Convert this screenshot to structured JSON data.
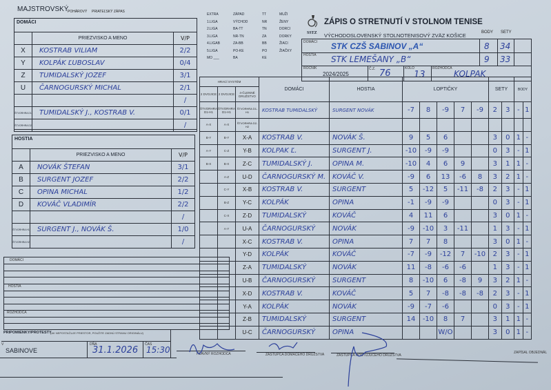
{
  "header": {
    "competition_types": [
      "MAJSTROVSKÝ",
      "POHÁROVÝ",
      "PRIATEĽSKÝ ZÁPAS"
    ],
    "league_col1": [
      "EXTRA",
      "1.LIGA",
      "2.LIGA",
      "3.LIGA",
      "4.LIGAB",
      "5.LIGA",
      "MO ___"
    ],
    "league_col2": [
      "ZÁPAD",
      "VÝCHOD",
      "BA-TT",
      "NR-TN",
      "ZA-BB",
      "PO-KE",
      "BA"
    ],
    "league_col3": [
      "TT",
      "NR",
      "TN",
      "ZA",
      "BB",
      "PO",
      "KE"
    ],
    "league_col4": [
      "MUŽI",
      "ŽENY",
      "DORCI",
      "DORKY",
      "ŽIACI",
      "ŽIAČKY"
    ],
    "logo_text": "SSTZ",
    "title": "ZÁPIS O STRETNUTÍ V STOLNOM TENISE",
    "subtitle": "VÝCHODOSLOVENSKÝ STOLNOTENISOVÝ ZVÄZ KOŠICE",
    "body_label": "BODY",
    "sety_label": "SETY"
  },
  "teams": {
    "home_label": "DOMÁCI",
    "home": "STK CZŠ SABINOV „A“",
    "home_points": "8",
    "home_sets": "34",
    "away_label": "HOSTIA",
    "away": "STK LEMEŠANY „B“",
    "away_points": "9",
    "away_sets": "33",
    "season_label": "ROČNÍK",
    "season": "2024/2025",
    "number_label": "Č.Z.",
    "number": "76",
    "round_label": "KOLO",
    "round": "13",
    "referee_label": "ROZHODCA",
    "referee": "KOLPAK"
  },
  "home_players": {
    "title": "DOMÁCI",
    "name_header": "PRIEZVISKO A MENO",
    "vp_header": "V/P",
    "rows": [
      {
        "l": "X",
        "n": "KOSTRAB VILIAM",
        "vp": "2/2"
      },
      {
        "l": "Y",
        "n": "KOLPÁK ĽUBOSLAV",
        "vp": "0/4"
      },
      {
        "l": "Z",
        "n": "TUMIDALSKÝ JOZEF",
        "vp": "3/1"
      },
      {
        "l": "U",
        "n": "ČARNOGURSKÝ MICHAL",
        "vp": "2/1"
      },
      {
        "l": "",
        "n": "",
        "vp": "/"
      },
      {
        "l": "ŠTVORHRA D1",
        "n": "TUMIDALSKÝ J., KOSTRAB V.",
        "vp": "0/1"
      },
      {
        "l": "ŠTVORHRA D2",
        "n": "",
        "vp": "/"
      }
    ]
  },
  "away_players": {
    "title": "HOSTIA",
    "name_header": "PRIEZVISKO A MENO",
    "vp_header": "V/P",
    "rows": [
      {
        "l": "A",
        "n": "NOVÁK ŠTEFAN",
        "vp": "3/1"
      },
      {
        "l": "B",
        "n": "SURGENT JOZEF",
        "vp": "2/2"
      },
      {
        "l": "C",
        "n": "OPINA MICHAL",
        "vp": "1/2"
      },
      {
        "l": "D",
        "n": "KOVÁČ VLADIMÍR",
        "vp": "2/2"
      },
      {
        "l": "",
        "n": "",
        "vp": "/"
      },
      {
        "l": "ŠTVORHRA H1",
        "n": "SURGENT J., NOVÁK Š.",
        "vp": "1/0"
      },
      {
        "l": "ŠTVORHRA H2",
        "n": "",
        "vp": "/"
      }
    ]
  },
  "matches": {
    "system_label": "HRACÍ SYSTÉM",
    "sys_headers": [
      "2 DVOJICE",
      "2 DVOJICE",
      "4-ČLENNÉ DRUŽSTVO"
    ],
    "home_header": "DOMÁCI",
    "away_header": "HOSTIA",
    "balls_header": "LOPTIČKY",
    "sets_header": "SETY",
    "points_header": "BODY",
    "rows": [
      {
        "s1": "ŠTVORHRA D1-H1",
        "s2": "ŠTVORHRA D1-H1",
        "code": "ŠTVORHRA D1-H1",
        "h": "KOSTRAB TUMIDALSKÝ",
        "a": "SURGENT NOVÁK",
        "b": [
          "-7",
          "8",
          "-9",
          "7",
          "-9"
        ],
        "s": [
          "2",
          "3"
        ],
        "p": [
          "-",
          "1"
        ]
      },
      {
        "s1": "A-X",
        "s2": "A-X",
        "code": "ŠTVORHRA D2-H2",
        "h": "",
        "a": "",
        "b": [
          "",
          "",
          "",
          "",
          ""
        ],
        "s": [
          "",
          ""
        ],
        "p": [
          "",
          ""
        ]
      },
      {
        "s1": "B-Y",
        "s2": "B-Y",
        "code": "X-A",
        "h": "KOSTRAB V.",
        "a": "NOVÁK Š.",
        "b": [
          "9",
          "5",
          "6",
          "",
          ""
        ],
        "s": [
          "3",
          "0"
        ],
        "p": [
          "1",
          "-"
        ]
      },
      {
        "s1": "A-Y",
        "s2": "C-Z",
        "code": "Y-B",
        "h": "KOLPAK Ľ.",
        "a": "SURGENT J.",
        "b": [
          "-10",
          "-9",
          "-9",
          "",
          ""
        ],
        "s": [
          "0",
          "3"
        ],
        "p": [
          "-",
          "1"
        ]
      },
      {
        "s1": "B-X",
        "s2": "B-X",
        "code": "Z-C",
        "h": "TUMIDALSKÝ J.",
        "a": "OPINA M.",
        "b": [
          "-10",
          "4",
          "6",
          "9",
          ""
        ],
        "s": [
          "3",
          "1"
        ],
        "p": [
          "1",
          "-"
        ]
      },
      {
        "s1": "",
        "s2": "A-Z",
        "code": "U-D",
        "h": "ČARNOGURSKÝ M.",
        "a": "KOVÁČ V.",
        "b": [
          "-9",
          "6",
          "13",
          "-6",
          "8"
        ],
        "s": [
          "3",
          "2"
        ],
        "p": [
          "1",
          "-"
        ]
      },
      {
        "s1": "",
        "s2": "C-Y",
        "code": "X-B",
        "h": "KOSTRAB V.",
        "a": "SURGENT",
        "b": [
          "5",
          "-12",
          "5",
          "-11",
          "-8"
        ],
        "s": [
          "2",
          "3"
        ],
        "p": [
          "-",
          "1"
        ]
      },
      {
        "s1": "",
        "s2": "B-Z",
        "code": "Y-C",
        "h": "KOLPÁK",
        "a": "OPINA",
        "b": [
          "-1",
          "-9",
          "-9",
          "",
          ""
        ],
        "s": [
          "0",
          "3"
        ],
        "p": [
          "-",
          "1"
        ]
      },
      {
        "s1": "",
        "s2": "C-X",
        "code": "Z-D",
        "h": "TUMIDALSKÝ",
        "a": "KOVÁČ",
        "b": [
          "4",
          "11",
          "6",
          "",
          ""
        ],
        "s": [
          "3",
          "0"
        ],
        "p": [
          "1",
          "-"
        ]
      },
      {
        "s1": "",
        "s2": "A-Y",
        "code": "U-A",
        "h": "ČARNOGURSKÝ",
        "a": "NOVÁK",
        "b": [
          "-9",
          "-10",
          "3",
          "-11",
          ""
        ],
        "s": [
          "1",
          "3"
        ],
        "p": [
          "-",
          "1"
        ]
      },
      {
        "s1": "",
        "s2": "",
        "code": "X-C",
        "h": "KOSTRAB V.",
        "a": "OPINA",
        "b": [
          "7",
          "7",
          "8",
          "",
          ""
        ],
        "s": [
          "3",
          "0"
        ],
        "p": [
          "1",
          "-"
        ]
      },
      {
        "s1": "",
        "s2": "",
        "code": "Y-D",
        "h": "KOLPÁK",
        "a": "KOVÁČ",
        "b": [
          "-7",
          "-9",
          "-12",
          "7",
          "-10"
        ],
        "s": [
          "2",
          "3"
        ],
        "p": [
          "-",
          "1"
        ]
      },
      {
        "s1": "",
        "s2": "",
        "code": "Z-A",
        "h": "TUMIDALSKÝ",
        "a": "NOVÁK",
        "b": [
          "11",
          "-8",
          "-6",
          "-6",
          ""
        ],
        "s": [
          "1",
          "3"
        ],
        "p": [
          "-",
          "1"
        ]
      },
      {
        "s1": "",
        "s2": "",
        "code": "U-B",
        "h": "ČARNOGURSKÝ",
        "a": "SURGENT",
        "b": [
          "8",
          "-10",
          "6",
          "-8",
          "9"
        ],
        "s": [
          "3",
          "2"
        ],
        "p": [
          "1",
          "-"
        ]
      },
      {
        "s1": "",
        "s2": "",
        "code": "X-D",
        "h": "KOSTRAB V.",
        "a": "KOVÁČ",
        "b": [
          "5",
          "7",
          "-8",
          "-8",
          "-8"
        ],
        "s": [
          "2",
          "3"
        ],
        "p": [
          "-",
          "1"
        ]
      },
      {
        "s1": "",
        "s2": "",
        "code": "Y-A",
        "h": "KOLPÁK",
        "a": "NOVÁK",
        "b": [
          "-9",
          "-7",
          "-6",
          "",
          ""
        ],
        "s": [
          "0",
          "3"
        ],
        "p": [
          "-",
          "1"
        ]
      },
      {
        "s1": "",
        "s2": "",
        "code": "Z-B",
        "h": "TUMIDALSKÝ",
        "a": "SURGENT",
        "b": [
          "14",
          "-10",
          "8",
          "7",
          ""
        ],
        "s": [
          "3",
          "1"
        ],
        "p": [
          "1",
          "-"
        ]
      },
      {
        "s1": "",
        "s2": "",
        "code": "U-C",
        "h": "ČARNOGURSKÝ",
        "a": "OPINA",
        "b": [
          "",
          "",
          "W/O",
          "",
          ""
        ],
        "s": [
          "3",
          "0"
        ],
        "p": [
          "1",
          "-"
        ]
      }
    ]
  },
  "notes": {
    "home_label": "DOMÁCI",
    "away_label": "HOSTIA",
    "referee_label": "ROZHODCA",
    "protests_label": "PRIPOMIENKY/PROTESTY",
    "protests_hint": "(AK NEPOSTAČUJE PRIESTOR, POUŽITE ZADNÚ STRANU ORIGINÁLU)"
  },
  "footer": {
    "place_label": "V",
    "place": "SABINOVE",
    "date_label": "DŇA",
    "date": "31.1.2026",
    "time_label": "ČAS",
    "time": "15:30",
    "sig1_label": "HLAVNÝ ROZHODCA",
    "sig2_label": "ZÁSTUPCA DOMÁCEHO DRUŽSTVA",
    "sig3_label": "ZÁSTUPCA HOSŤUJÚCEHO DRUŽSTVA",
    "sig4_label": "ZAPÍSAL OBJEDNÁL"
  }
}
